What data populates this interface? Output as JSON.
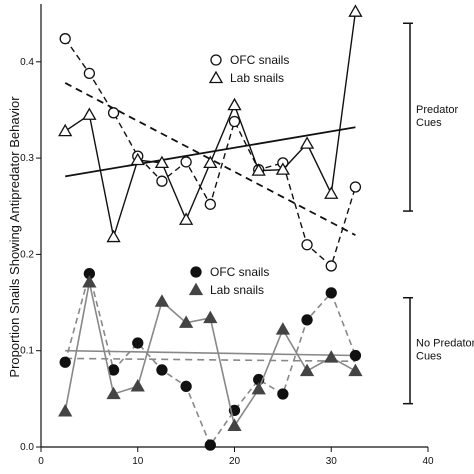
{
  "chart_data": {
    "type": "line",
    "xlabel": "",
    "ylabel": "Proportion Snails Showing Antipredator Behavior",
    "xlim": [
      0,
      40
    ],
    "ylim": [
      0,
      0.46
    ],
    "x_ticks": [
      0,
      10,
      20,
      30,
      40
    ],
    "y_ticks": [
      0.0,
      0.1,
      0.2,
      0.3,
      0.4
    ],
    "x_tick_labels": [
      "0",
      "10",
      "20",
      "30",
      "40"
    ],
    "y_tick_labels": [
      "0.0",
      "0.1",
      "0.2",
      "0.3",
      "0.4"
    ],
    "grid": false,
    "legends": [
      {
        "placement": "upper-center",
        "entries": [
          "OFC snails",
          "Lab snails"
        ]
      },
      {
        "placement": "middle-center",
        "entries": [
          "OFC snails",
          "Lab snails"
        ]
      }
    ],
    "brackets": [
      {
        "label_lines": [
          "Predator",
          "Cues"
        ],
        "y_range": [
          0.245,
          0.44
        ]
      },
      {
        "label_lines": [
          "No Predator",
          "Cues"
        ],
        "y_range": [
          0.045,
          0.155
        ]
      }
    ],
    "series": [
      {
        "name": "OFC snails",
        "group": "Predator Cues",
        "marker": "open-circle",
        "line": "dashed",
        "color": "#111111",
        "x": [
          2.5,
          5,
          7.5,
          10,
          12.5,
          15,
          17.5,
          20,
          22.5,
          25,
          27.5,
          30,
          32.5
        ],
        "y": [
          0.424,
          0.388,
          0.347,
          0.302,
          0.276,
          0.296,
          0.252,
          0.338,
          0.288,
          0.295,
          0.21,
          0.188,
          0.27
        ],
        "trend": {
          "x": [
            2.5,
            32.5
          ],
          "y": [
            0.378,
            0.22
          ]
        }
      },
      {
        "name": "Lab snails",
        "group": "Predator Cues",
        "marker": "open-triangle",
        "line": "solid",
        "color": "#111111",
        "x": [
          2.5,
          5,
          7.5,
          10,
          12.5,
          15,
          17.5,
          20,
          22.5,
          25,
          27.5,
          30,
          32.5
        ],
        "y": [
          0.328,
          0.345,
          0.218,
          0.298,
          0.295,
          0.236,
          0.295,
          0.355,
          0.287,
          0.288,
          0.315,
          0.263,
          0.452
        ],
        "trend": {
          "x": [
            2.5,
            32.5
          ],
          "y": [
            0.281,
            0.332
          ]
        }
      },
      {
        "name": "OFC snails",
        "group": "No Predator Cues",
        "marker": "filled-circle",
        "line": "dashed",
        "color": "#111111",
        "x": [
          2.5,
          5,
          7.5,
          10,
          12.5,
          15,
          17.5,
          20,
          22.5,
          25,
          27.5,
          30,
          32.5
        ],
        "y": [
          0.088,
          0.18,
          0.08,
          0.108,
          0.08,
          0.063,
          0.002,
          0.038,
          0.07,
          0.055,
          0.132,
          0.16,
          0.095
        ],
        "trend": {
          "x": [
            2.5,
            32.5
          ],
          "y": [
            0.092,
            0.089
          ]
        }
      },
      {
        "name": "Lab snails",
        "group": "No Predator Cues",
        "marker": "filled-triangle",
        "line": "solid",
        "color": "#444444",
        "x": [
          2.5,
          5,
          7.5,
          10,
          12.5,
          15,
          17.5,
          20,
          22.5,
          25,
          27.5,
          30,
          32.5
        ],
        "y": [
          0.037,
          0.171,
          0.055,
          0.063,
          0.151,
          0.129,
          0.134,
          0.022,
          0.06,
          0.122,
          0.079,
          0.093,
          0.079
        ],
        "trend": {
          "x": [
            2.5,
            32.5
          ],
          "y": [
            0.1,
            0.095
          ]
        }
      }
    ]
  }
}
